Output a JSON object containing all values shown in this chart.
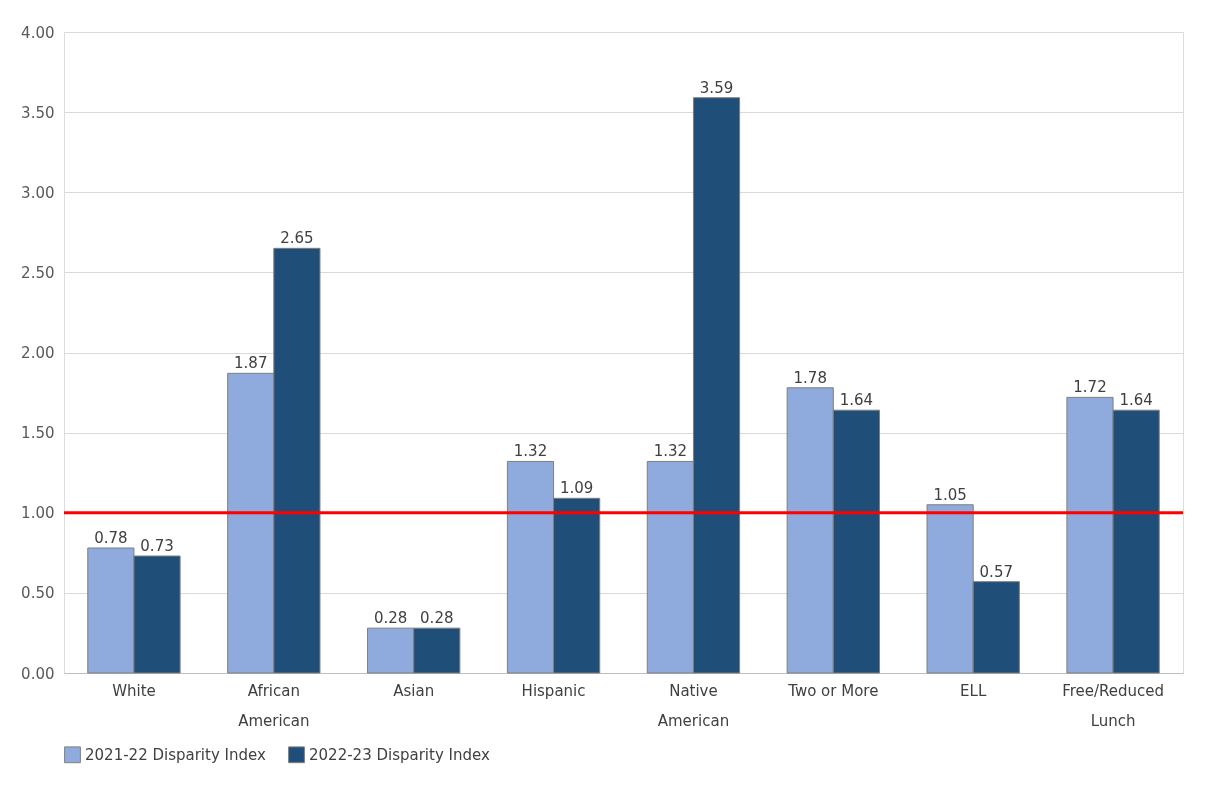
{
  "chart_data": {
    "type": "bar",
    "categories": [
      "White",
      "African American",
      "Asian",
      "Hispanic",
      "Native American",
      "Two or More",
      "ELL",
      "Free/Reduced Lunch"
    ],
    "series": [
      {
        "name": "2021-22 Disparity Index",
        "color": "#8faadc",
        "values": [
          0.78,
          1.87,
          0.28,
          1.32,
          1.32,
          1.78,
          1.05,
          1.72
        ]
      },
      {
        "name": "2022-23 Disparity Index",
        "color": "#1f4e79",
        "values": [
          0.73,
          2.65,
          0.28,
          1.09,
          3.59,
          1.64,
          0.57,
          1.64
        ]
      }
    ],
    "ylim": [
      0,
      4
    ],
    "yticks": [
      {
        "value": 0,
        "label": "0.00"
      },
      {
        "value": 0.5,
        "label": "0.50"
      },
      {
        "value": 1,
        "label": "1.00"
      },
      {
        "value": 1.5,
        "label": "1.50"
      },
      {
        "value": 2,
        "label": "2.00"
      },
      {
        "value": 2.5,
        "label": "2.50"
      },
      {
        "value": 3,
        "label": "3.00"
      },
      {
        "value": 3.5,
        "label": "3.50"
      },
      {
        "value": 4,
        "label": "4.00"
      }
    ],
    "ref_lines": [
      {
        "axis": "y",
        "value": 1,
        "label": null,
        "color": "#ff0000"
      }
    ],
    "data_labels": true,
    "grid": "y",
    "legend": "bottom"
  }
}
